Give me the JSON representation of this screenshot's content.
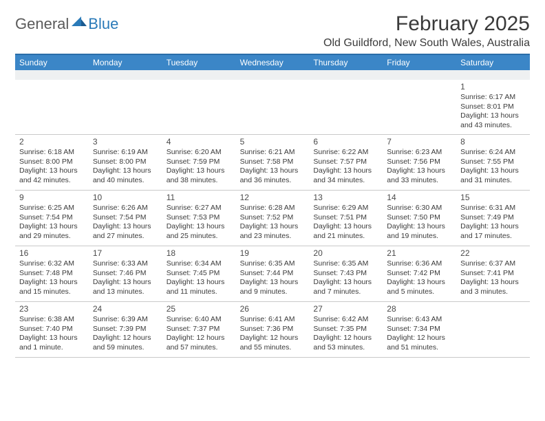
{
  "logo": {
    "general": "General",
    "blue": "Blue"
  },
  "title": "February 2025",
  "location": "Old Guildford, New South Wales, Australia",
  "colors": {
    "header_bar": "#3b86c7",
    "header_border": "#2a6da8",
    "alt_row": "#eef0f1",
    "text": "#3a3a3a",
    "logo_blue": "#2a7ab8",
    "logo_gray": "#5a5a5a"
  },
  "weekdays": [
    "Sunday",
    "Monday",
    "Tuesday",
    "Wednesday",
    "Thursday",
    "Friday",
    "Saturday"
  ],
  "weeks": [
    [
      null,
      null,
      null,
      null,
      null,
      null,
      {
        "n": "1",
        "sunrise": "Sunrise: 6:17 AM",
        "sunset": "Sunset: 8:01 PM",
        "daylight": "Daylight: 13 hours and 43 minutes."
      }
    ],
    [
      {
        "n": "2",
        "sunrise": "Sunrise: 6:18 AM",
        "sunset": "Sunset: 8:00 PM",
        "daylight": "Daylight: 13 hours and 42 minutes."
      },
      {
        "n": "3",
        "sunrise": "Sunrise: 6:19 AM",
        "sunset": "Sunset: 8:00 PM",
        "daylight": "Daylight: 13 hours and 40 minutes."
      },
      {
        "n": "4",
        "sunrise": "Sunrise: 6:20 AM",
        "sunset": "Sunset: 7:59 PM",
        "daylight": "Daylight: 13 hours and 38 minutes."
      },
      {
        "n": "5",
        "sunrise": "Sunrise: 6:21 AM",
        "sunset": "Sunset: 7:58 PM",
        "daylight": "Daylight: 13 hours and 36 minutes."
      },
      {
        "n": "6",
        "sunrise": "Sunrise: 6:22 AM",
        "sunset": "Sunset: 7:57 PM",
        "daylight": "Daylight: 13 hours and 34 minutes."
      },
      {
        "n": "7",
        "sunrise": "Sunrise: 6:23 AM",
        "sunset": "Sunset: 7:56 PM",
        "daylight": "Daylight: 13 hours and 33 minutes."
      },
      {
        "n": "8",
        "sunrise": "Sunrise: 6:24 AM",
        "sunset": "Sunset: 7:55 PM",
        "daylight": "Daylight: 13 hours and 31 minutes."
      }
    ],
    [
      {
        "n": "9",
        "sunrise": "Sunrise: 6:25 AM",
        "sunset": "Sunset: 7:54 PM",
        "daylight": "Daylight: 13 hours and 29 minutes."
      },
      {
        "n": "10",
        "sunrise": "Sunrise: 6:26 AM",
        "sunset": "Sunset: 7:54 PM",
        "daylight": "Daylight: 13 hours and 27 minutes."
      },
      {
        "n": "11",
        "sunrise": "Sunrise: 6:27 AM",
        "sunset": "Sunset: 7:53 PM",
        "daylight": "Daylight: 13 hours and 25 minutes."
      },
      {
        "n": "12",
        "sunrise": "Sunrise: 6:28 AM",
        "sunset": "Sunset: 7:52 PM",
        "daylight": "Daylight: 13 hours and 23 minutes."
      },
      {
        "n": "13",
        "sunrise": "Sunrise: 6:29 AM",
        "sunset": "Sunset: 7:51 PM",
        "daylight": "Daylight: 13 hours and 21 minutes."
      },
      {
        "n": "14",
        "sunrise": "Sunrise: 6:30 AM",
        "sunset": "Sunset: 7:50 PM",
        "daylight": "Daylight: 13 hours and 19 minutes."
      },
      {
        "n": "15",
        "sunrise": "Sunrise: 6:31 AM",
        "sunset": "Sunset: 7:49 PM",
        "daylight": "Daylight: 13 hours and 17 minutes."
      }
    ],
    [
      {
        "n": "16",
        "sunrise": "Sunrise: 6:32 AM",
        "sunset": "Sunset: 7:48 PM",
        "daylight": "Daylight: 13 hours and 15 minutes."
      },
      {
        "n": "17",
        "sunrise": "Sunrise: 6:33 AM",
        "sunset": "Sunset: 7:46 PM",
        "daylight": "Daylight: 13 hours and 13 minutes."
      },
      {
        "n": "18",
        "sunrise": "Sunrise: 6:34 AM",
        "sunset": "Sunset: 7:45 PM",
        "daylight": "Daylight: 13 hours and 11 minutes."
      },
      {
        "n": "19",
        "sunrise": "Sunrise: 6:35 AM",
        "sunset": "Sunset: 7:44 PM",
        "daylight": "Daylight: 13 hours and 9 minutes."
      },
      {
        "n": "20",
        "sunrise": "Sunrise: 6:35 AM",
        "sunset": "Sunset: 7:43 PM",
        "daylight": "Daylight: 13 hours and 7 minutes."
      },
      {
        "n": "21",
        "sunrise": "Sunrise: 6:36 AM",
        "sunset": "Sunset: 7:42 PM",
        "daylight": "Daylight: 13 hours and 5 minutes."
      },
      {
        "n": "22",
        "sunrise": "Sunrise: 6:37 AM",
        "sunset": "Sunset: 7:41 PM",
        "daylight": "Daylight: 13 hours and 3 minutes."
      }
    ],
    [
      {
        "n": "23",
        "sunrise": "Sunrise: 6:38 AM",
        "sunset": "Sunset: 7:40 PM",
        "daylight": "Daylight: 13 hours and 1 minute."
      },
      {
        "n": "24",
        "sunrise": "Sunrise: 6:39 AM",
        "sunset": "Sunset: 7:39 PM",
        "daylight": "Daylight: 12 hours and 59 minutes."
      },
      {
        "n": "25",
        "sunrise": "Sunrise: 6:40 AM",
        "sunset": "Sunset: 7:37 PM",
        "daylight": "Daylight: 12 hours and 57 minutes."
      },
      {
        "n": "26",
        "sunrise": "Sunrise: 6:41 AM",
        "sunset": "Sunset: 7:36 PM",
        "daylight": "Daylight: 12 hours and 55 minutes."
      },
      {
        "n": "27",
        "sunrise": "Sunrise: 6:42 AM",
        "sunset": "Sunset: 7:35 PM",
        "daylight": "Daylight: 12 hours and 53 minutes."
      },
      {
        "n": "28",
        "sunrise": "Sunrise: 6:43 AM",
        "sunset": "Sunset: 7:34 PM",
        "daylight": "Daylight: 12 hours and 51 minutes."
      },
      null
    ]
  ]
}
